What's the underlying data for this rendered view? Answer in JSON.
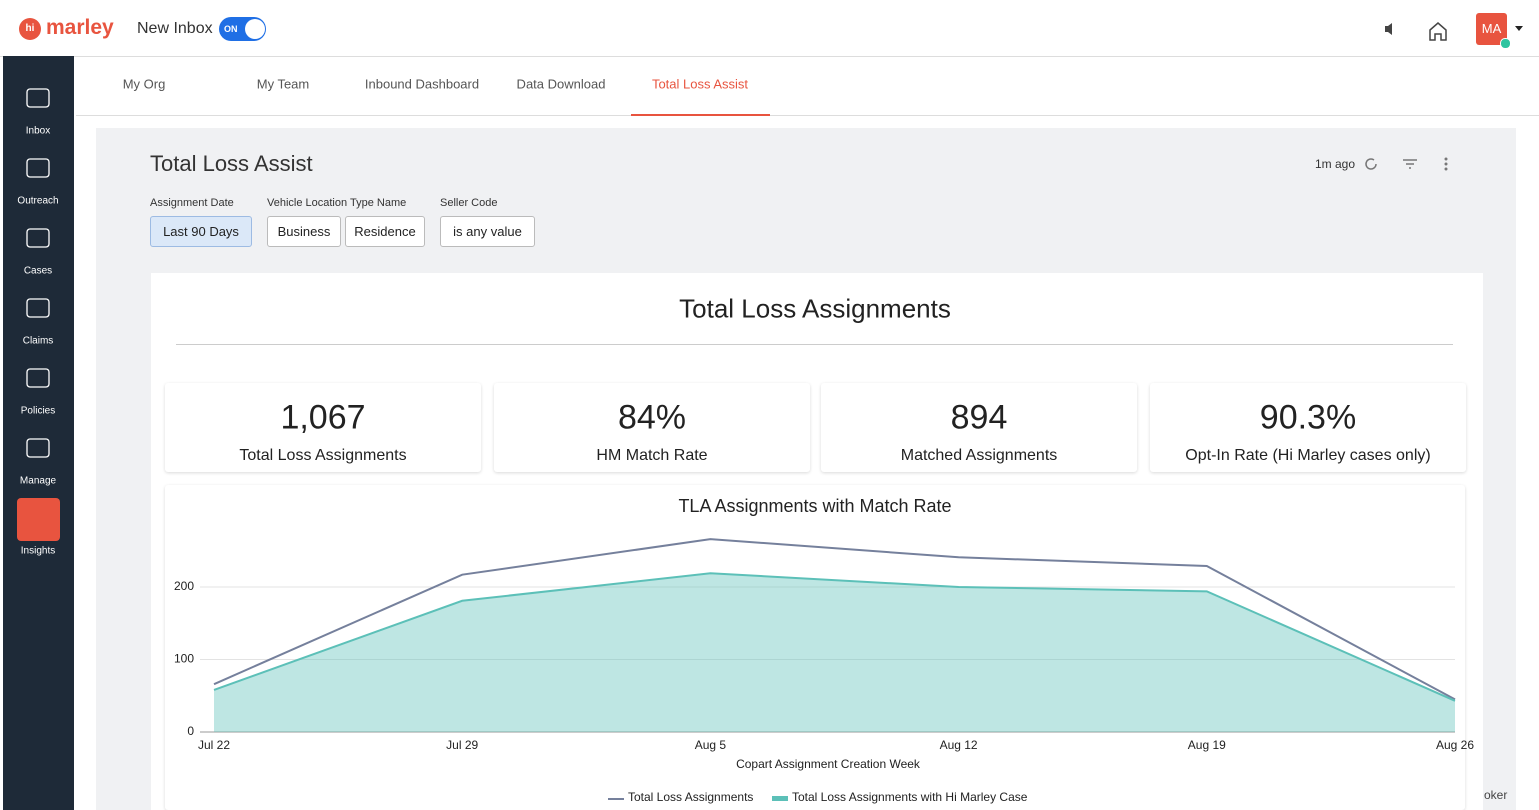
{
  "header": {
    "logo_badge": "hi",
    "logo": "marley",
    "inbox_label": "New Inbox",
    "toggle": "ON",
    "avatar": "MA"
  },
  "sidebar": [
    {
      "label": "Inbox"
    },
    {
      "label": "Outreach"
    },
    {
      "label": "Cases"
    },
    {
      "label": "Claims"
    },
    {
      "label": "Policies"
    },
    {
      "label": "Manage"
    },
    {
      "label": "Insights",
      "active": true
    }
  ],
  "tabs": [
    {
      "label": "My Org"
    },
    {
      "label": "My Team"
    },
    {
      "label": "Inbound Dashboard"
    },
    {
      "label": "Data Download"
    },
    {
      "label": "Total Loss Assist",
      "active": true
    }
  ],
  "dashboard": {
    "title": "Total Loss Assist",
    "updated": "1m ago",
    "filters": [
      {
        "label": "Assignment Date",
        "options": [
          "Last 90 Days"
        ],
        "selected": true
      },
      {
        "label": "Vehicle Location Type Name",
        "options": [
          "Business",
          "Residence"
        ]
      },
      {
        "label": "Seller Code",
        "options": [
          "is any value"
        ]
      }
    ],
    "section_title": "Total Loss Assignments",
    "kpis": [
      {
        "value": "1,067",
        "label": "Total Loss Assignments"
      },
      {
        "value": "84%",
        "label": "HM Match Rate"
      },
      {
        "value": "894",
        "label": "Matched Assignments"
      },
      {
        "value": "90.3%",
        "label": "Opt-In Rate (Hi Marley cases only)"
      }
    ],
    "footer_text": "oker"
  },
  "chart_data": {
    "type": "line",
    "title": "TLA Assignments with Match Rate",
    "x_label": "Copart Assignment Creation Week",
    "categories": [
      "Jul 22",
      "Jul 29",
      "Aug 5",
      "Aug 12",
      "Aug 19",
      "Aug 26"
    ],
    "series": [
      {
        "name": "Total Loss Assignments",
        "color": "#75809c",
        "values": [
          66,
          217,
          266,
          241,
          229,
          45
        ]
      },
      {
        "name": "Total Loss Assignments with Hi Marley Case",
        "color": "#5cc0b8",
        "area": true,
        "values": [
          58,
          181,
          219,
          200,
          194,
          43
        ]
      }
    ],
    "ylim": [
      0,
      280
    ],
    "yticks": [
      0,
      100,
      200
    ],
    "grid": true
  }
}
